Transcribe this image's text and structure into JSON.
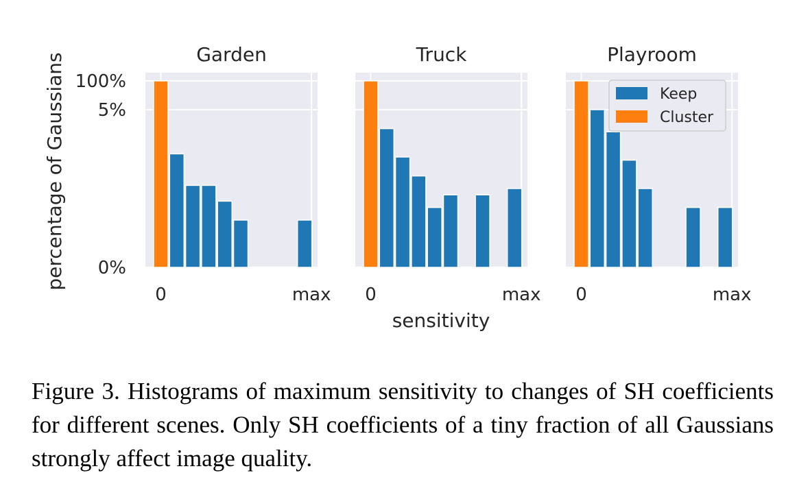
{
  "chart_data": [
    {
      "type": "bar",
      "title": "Garden",
      "x_tick_labels": [
        "0",
        "max"
      ],
      "y_tick_labels": [
        "0%",
        "5%",
        "100%"
      ],
      "series": [
        {
          "name": "Cluster",
          "color": "#ff7f0e",
          "values": [
            100,
            null,
            null,
            null,
            null,
            null,
            null,
            null,
            null,
            null
          ]
        },
        {
          "name": "Keep",
          "color": "#1f77b4",
          "values": [
            null,
            3.6,
            2.6,
            2.6,
            2.1,
            1.5,
            null,
            null,
            null,
            1.5
          ]
        }
      ],
      "ylim": [
        0,
        100
      ],
      "y_scale": "broken (0-5% linear, then 100%)",
      "grid": true
    },
    {
      "type": "bar",
      "title": "Truck",
      "x_tick_labels": [
        "0",
        "max"
      ],
      "y_tick_labels": [],
      "series": [
        {
          "name": "Cluster",
          "color": "#ff7f0e",
          "values": [
            100,
            null,
            null,
            null,
            null,
            null,
            null,
            null,
            null,
            null
          ]
        },
        {
          "name": "Keep",
          "color": "#1f77b4",
          "values": [
            null,
            4.4,
            3.5,
            2.9,
            1.9,
            2.3,
            null,
            2.3,
            null,
            2.5
          ]
        }
      ],
      "ylim": [
        0,
        100
      ],
      "grid": true
    },
    {
      "type": "bar",
      "title": "Playroom",
      "x_tick_labels": [
        "0",
        "max"
      ],
      "y_tick_labels": [],
      "series": [
        {
          "name": "Cluster",
          "color": "#ff7f0e",
          "values": [
            100,
            null,
            null,
            null,
            null,
            null,
            null,
            null,
            null,
            null
          ]
        },
        {
          "name": "Keep",
          "color": "#1f77b4",
          "values": [
            null,
            5.1,
            4.3,
            3.4,
            2.5,
            null,
            null,
            1.9,
            null,
            1.9
          ]
        }
      ],
      "ylim": [
        0,
        100
      ],
      "grid": true,
      "legend": {
        "placement": "top-right",
        "entries": [
          "Keep",
          "Cluster"
        ]
      }
    }
  ],
  "shared": {
    "ylabel": "percentage of Gaussians",
    "xlabel": "sensitivity"
  },
  "caption": "Figure 3.  Histograms of maximum sensitivity to changes of SH coefficients for different scenes.  Only SH coefficients of a tiny fraction of all Gaussians strongly affect image quality.",
  "colors": {
    "panel_background": "#eaeaf2",
    "grid": "#ffffff",
    "keep": "#1f77b4",
    "cluster": "#ff7f0e"
  }
}
